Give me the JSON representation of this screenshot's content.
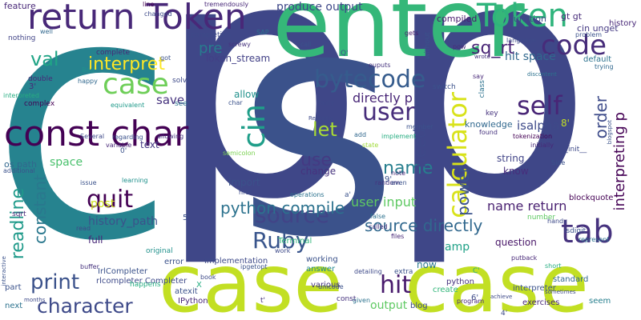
{
  "cloud": {
    "words": [
      {
        "text": "c",
        "color": "#26838f"
      },
      {
        "text": "p",
        "color": "#3f4788"
      },
      {
        "text": "p",
        "color": "#3f4788"
      },
      {
        "text": "s",
        "color": "#3b528b"
      },
      {
        "text": "enter",
        "color": "#35b779"
      },
      {
        "text": "case",
        "color": "#c2df23"
      },
      {
        "text": "case",
        "color": "#c2df23"
      },
      {
        "text": "return Token",
        "color": "#482878"
      },
      {
        "text": "const char",
        "color": "#440154"
      },
      {
        "text": "Token",
        "color": "#2fb47c"
      },
      {
        "text": "code",
        "color": "#472c7a"
      },
      {
        "text": "case",
        "color": "#6ece58"
      },
      {
        "text": "cin",
        "color": "#1f9e89"
      },
      {
        "text": "self",
        "color": "#482576"
      },
      {
        "text": "tab",
        "color": "#46327e"
      },
      {
        "text": "Ruby",
        "color": "#39558c"
      },
      {
        "text": "source",
        "color": "#414487"
      },
      {
        "text": "bytecode",
        "color": "#365c8d"
      },
      {
        "text": "user",
        "color": "#472d7b"
      },
      {
        "text": "quit",
        "color": "#440154"
      },
      {
        "text": "calculator",
        "color": "#d8e219"
      },
      {
        "text": "hit",
        "color": "#481a6c"
      },
      {
        "text": "print",
        "color": "#3b528b"
      },
      {
        "text": "character",
        "color": "#3e4a89"
      },
      {
        "text": "interpret",
        "color": "#fde725"
      },
      {
        "text": "val",
        "color": "#20a486"
      },
      {
        "text": "sq_rt",
        "color": "#482475"
      },
      {
        "text": "let",
        "color": "#a8db34"
      },
      {
        "text": "use",
        "color": "#443a83"
      },
      {
        "text": "name",
        "color": "#277f8e"
      },
      {
        "text": "need",
        "color": "#3e4989"
      },
      {
        "text": "readline",
        "color": "#1f9a8a"
      },
      {
        "text": "constant",
        "color": "#2a788e"
      },
      {
        "text": "python compile",
        "color": "#2c728e"
      },
      {
        "text": "source directly",
        "color": "#31688e"
      },
      {
        "text": "power",
        "color": "#3b528b"
      },
      {
        "text": "interpreting p",
        "color": "#440154"
      },
      {
        "text": "order",
        "color": "#3e4c8a"
      },
      {
        "text": "pre",
        "color": "#287c8e"
      },
      {
        "text": "directly p",
        "color": "#482677"
      },
      {
        "text": "produce output",
        "color": "#3f4889"
      },
      {
        "text": "user input",
        "color": "#5ec962"
      },
      {
        "text": "name return",
        "color": "#481f70"
      },
      {
        "text": "isalpha",
        "color": "#3e4a89"
      },
      {
        "text": "hit space",
        "color": "#31688e"
      },
      {
        "text": "Token_stream",
        "color": "#424086"
      },
      {
        "text": "history_path",
        "color": "#3b528b"
      },
      {
        "text": "save",
        "color": "#46337e"
      },
      {
        "text": "amp",
        "color": "#1fa187"
      },
      {
        "text": "question",
        "color": "#481668"
      },
      {
        "text": "output",
        "color": "#5ec962"
      },
      {
        "text": "now",
        "color": "#2a788e"
      },
      {
        "text": "space",
        "color": "#4ac16d"
      },
      {
        "text": "import",
        "color": "#3b528b"
      },
      {
        "text": "post",
        "color": "#cde11d"
      },
      {
        "text": "full",
        "color": "#482878"
      },
      {
        "text": "os path",
        "color": "#31688e"
      },
      {
        "text": "text",
        "color": "#443983"
      },
      {
        "text": "knowledge",
        "color": "#31688e"
      },
      {
        "text": "string",
        "color": "#414487"
      },
      {
        "text": "know",
        "color": "#472d7b"
      },
      {
        "text": "change",
        "color": "#46337e"
      },
      {
        "text": "allow",
        "color": "#21918c"
      },
      {
        "text": "compiled",
        "color": "#481a6c"
      },
      {
        "text": "function",
        "color": "#3e4a89"
      },
      {
        "text": "gt gt",
        "color": "#472c7a"
      },
      {
        "text": "cin unget",
        "color": "#443983"
      },
      {
        "text": "history",
        "color": "#482878"
      },
      {
        "text": "default",
        "color": "#2c728e"
      },
      {
        "text": "IrlCompleter",
        "color": "#3b528b"
      },
      {
        "text": "rlcompleter Completer",
        "color": "#3e4a89"
      },
      {
        "text": "atexit",
        "color": "#3b528b"
      },
      {
        "text": "IPython",
        "color": "#482878"
      },
      {
        "text": "X",
        "color": "#26ad81"
      },
      {
        "text": "implementation",
        "color": "#3e4a89"
      },
      {
        "text": "Terminal",
        "color": "#32b67a"
      },
      {
        "text": "answer",
        "color": "#24878e"
      },
      {
        "text": "working",
        "color": "#3b528b"
      },
      {
        "text": "python",
        "color": "#46337e"
      },
      {
        "text": "interpreter",
        "color": "#3b528b"
      },
      {
        "text": "standard",
        "color": "#31688e"
      },
      {
        "text": "seem",
        "color": "#277f8e"
      },
      {
        "text": "exercises",
        "color": "#482878"
      },
      {
        "text": "blog",
        "color": "#3e4a89"
      },
      {
        "text": "create",
        "color": "#32b67a"
      },
      {
        "text": "various",
        "color": "#46337e"
      },
      {
        "text": "error",
        "color": "#3b528b"
      },
      {
        "text": "part",
        "color": "#3b528b"
      },
      {
        "text": "next",
        "color": "#2c728e"
      },
      {
        "text": "feature",
        "color": "#482878"
      },
      {
        "text": "nothing",
        "color": "#414487"
      },
      {
        "text": "well",
        "color": "#31688e"
      },
      {
        "text": "line",
        "color": "#440154"
      },
      {
        "text": "changed",
        "color": "#3e4a89"
      },
      {
        "text": "completion",
        "color": "#3e4a89"
      },
      {
        "text": "complete",
        "color": "#482878"
      },
      {
        "text": "screwy",
        "color": "#46337e"
      },
      {
        "text": "SAP",
        "color": "#2c728e"
      },
      {
        "text": "call",
        "color": "#3b528b"
      },
      {
        "text": "gets",
        "color": "#481a6c"
      },
      {
        "text": "pow",
        "color": "#472c7a"
      },
      {
        "text": "without",
        "color": "#3b528b"
      },
      {
        "text": "ouputs",
        "color": "#46337e"
      },
      {
        "text": "solve",
        "color": "#3e4a89"
      },
      {
        "text": "got",
        "color": "#3b528b"
      },
      {
        "text": "Bad",
        "color": "#21918c"
      },
      {
        "text": "happy",
        "color": "#31688e"
      },
      {
        "text": "double",
        "color": "#482878"
      },
      {
        "text": "interpreted",
        "color": "#26ad81"
      },
      {
        "text": "complex",
        "color": "#440154"
      },
      {
        "text": "equivalent",
        "color": "#1f9a8a"
      },
      {
        "text": "see",
        "color": "#2c728e"
      },
      {
        "text": "char",
        "color": "#3b528b"
      },
      {
        "text": "fairly",
        "color": "#3e4a89"
      },
      {
        "text": "key",
        "color": "#46337e"
      },
      {
        "text": "class",
        "color": "#2c728e"
      },
      {
        "text": "say",
        "color": "#482878"
      },
      {
        "text": "language",
        "color": "#3e4a89"
      },
      {
        "text": "problem",
        "color": "#3b528b"
      },
      {
        "text": "trying",
        "color": "#31688e"
      },
      {
        "text": "tokenization",
        "color": "#440154"
      },
      {
        "text": "initially",
        "color": "#482878"
      },
      {
        "text": "__init__",
        "color": "#3e4a89"
      },
      {
        "text": "Side",
        "color": "#3b528b"
      },
      {
        "text": "found",
        "color": "#46337e"
      },
      {
        "text": "blockquote",
        "color": "#440154"
      },
      {
        "text": "represent",
        "color": "#2c728e"
      },
      {
        "text": "isdigit",
        "color": "#3b528b"
      },
      {
        "text": "number",
        "color": "#5ec962"
      },
      {
        "text": "handy",
        "color": "#3e4a89"
      },
      {
        "text": "short",
        "color": "#26ad81"
      },
      {
        "text": "putback",
        "color": "#482878"
      },
      {
        "text": "extra",
        "color": "#3b528b"
      },
      {
        "text": "detailing",
        "color": "#3e4a89"
      },
      {
        "text": "program",
        "color": "#482878"
      },
      {
        "text": "achieve",
        "color": "#3e4a89"
      },
      {
        "text": "given",
        "color": "#2c728e"
      },
      {
        "text": "unicode",
        "color": "#3b528b"
      },
      {
        "text": "const",
        "color": "#46337e"
      },
      {
        "text": "happens",
        "color": "#26ad81"
      },
      {
        "text": "book",
        "color": "#3e4a89"
      },
      {
        "text": "ipgetopt",
        "color": "#3b528b"
      },
      {
        "text": "original",
        "color": "#21918c"
      },
      {
        "text": "read",
        "color": "#3e4a89"
      },
      {
        "text": "sqrt",
        "color": "#482878"
      },
      {
        "text": "additional",
        "color": "#3b528b"
      },
      {
        "text": "Several",
        "color": "#3e4a89"
      },
      {
        "text": "regarding",
        "color": "#3b528b"
      },
      {
        "text": "allowing",
        "color": "#46337e"
      },
      {
        "text": "variable",
        "color": "#482878"
      },
      {
        "text": "learning",
        "color": "#21918c"
      },
      {
        "text": "issue",
        "color": "#3b528b"
      },
      {
        "text": "semicolon",
        "color": "#7ad151"
      },
      {
        "text": "href",
        "color": "#3e4a89"
      },
      {
        "text": "operations",
        "color": "#2c728e"
      },
      {
        "text": "random",
        "color": "#46337e"
      },
      {
        "text": "note",
        "color": "#482878"
      },
      {
        "text": "even",
        "color": "#3b528b"
      },
      {
        "text": "false",
        "color": "#2c728e"
      },
      {
        "text": "called",
        "color": "#46337e"
      },
      {
        "text": "files",
        "color": "#482878"
      },
      {
        "text": "work",
        "color": "#3e4a89"
      },
      {
        "text": "implement",
        "color": "#26ad81"
      },
      {
        "text": "member",
        "color": "#3b528b"
      },
      {
        "text": "add",
        "color": "#31688e"
      },
      {
        "text": "state",
        "color": "#a0da39"
      },
      {
        "text": "Recently",
        "color": "#3e4a89"
      },
      {
        "text": "switch",
        "color": "#3b528b"
      },
      {
        "text": "months",
        "color": "#3e4a89"
      },
      {
        "text": "buffer",
        "color": "#46337e"
      },
      {
        "text": "interactive",
        "color": "#3b528b"
      },
      {
        "text": "tremendously",
        "color": "#482878"
      },
      {
        "text": "sometimes",
        "color": "#3e4a89"
      },
      {
        "text": "blogspot",
        "color": "#3b528b"
      },
      {
        "text": "discontent",
        "color": "#2c728e"
      },
      {
        "text": "wrote",
        "color": "#46337e"
      },
      {
        "text": "Q'",
        "color": "#3b528b"
      },
      {
        "text": "8'",
        "color": "#c2df23"
      },
      {
        "text": "9'",
        "color": "#3b528b"
      },
      {
        "text": "6'",
        "color": "#3e4a89"
      },
      {
        "text": "5'",
        "color": "#3b528b"
      },
      {
        "text": "3'",
        "color": "#482878"
      },
      {
        "text": "1'",
        "color": "#3e4a89"
      },
      {
        "text": "0'",
        "color": "#3b528b"
      },
      {
        "text": "4'",
        "color": "#3e4a89"
      },
      {
        "text": "a'",
        "color": "#3b528b"
      },
      {
        "text": "t'",
        "color": "#46337e"
      },
      {
        "text": "C'",
        "color": "#26ad81"
      }
    ]
  }
}
